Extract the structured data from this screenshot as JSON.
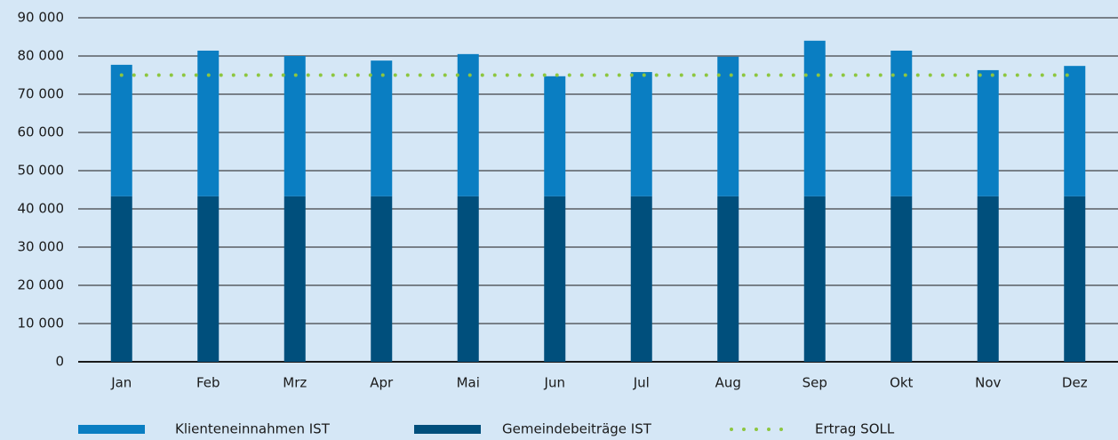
{
  "chart_data": {
    "type": "bar",
    "stacked": true,
    "categories": [
      "Jan",
      "Feb",
      "Mrz",
      "Apr",
      "Mai",
      "Jun",
      "Jul",
      "Aug",
      "Sep",
      "Okt",
      "Nov",
      "Dez"
    ],
    "series": [
      {
        "name": "Klienteneinnahmen IST",
        "color": "#0a7ec2",
        "stack": "top",
        "values": [
          34400,
          38100,
          36700,
          35500,
          37200,
          31400,
          32500,
          36500,
          40700,
          38100,
          33000,
          34100
        ]
      },
      {
        "name": "Gemeindebeiträge IST",
        "color": "#004f7c",
        "stack": "bottom",
        "values": [
          43300,
          43300,
          43300,
          43300,
          43300,
          43300,
          43300,
          43300,
          43300,
          43300,
          43300,
          43300
        ]
      },
      {
        "name": "Ertrag SOLL",
        "color": "#8dc63f",
        "type": "line",
        "style": "dotted",
        "values": [
          75000,
          75000,
          75000,
          75000,
          75000,
          75000,
          75000,
          75000,
          75000,
          75000,
          75000,
          75000
        ]
      }
    ],
    "ylim": [
      0,
      90000
    ],
    "yticks": [
      0,
      {
        "value": 10000,
        "label": "10 000"
      },
      {
        "value": 20000,
        "label": "20 000"
      },
      {
        "value": 30000,
        "label": "30 000"
      },
      {
        "value": 40000,
        "label": "40 000"
      },
      {
        "value": 50000,
        "label": "50 000"
      },
      {
        "value": 60000,
        "label": "60 000"
      },
      {
        "value": 70000,
        "label": "70 000"
      },
      {
        "value": 80000,
        "label": "80 000"
      },
      {
        "value": 90000,
        "label": "90 000"
      }
    ],
    "grid": true,
    "legend": "bottom"
  }
}
